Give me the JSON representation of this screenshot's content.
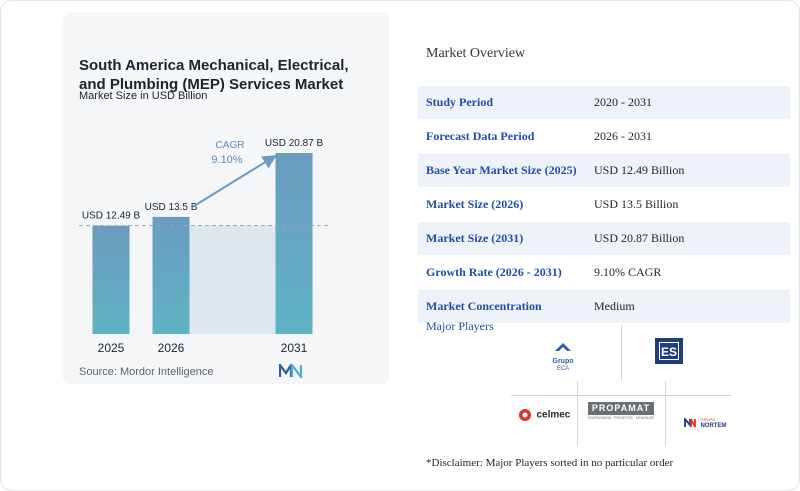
{
  "chart": {
    "title_line1": "South America Mechanical, Electrical,",
    "title_line2": "and Plumbing (MEP) Services Market",
    "subtitle": "Market Size in USD Billion",
    "source": "Source: Mordor Intelligence",
    "cagr_label": "CAGR",
    "cagr_value": "9.10%"
  },
  "chart_data": {
    "type": "bar",
    "categories": [
      "2025",
      "2026",
      "2031"
    ],
    "values": [
      12.49,
      13.5,
      20.87
    ],
    "data_labels": [
      "USD 12.49 B",
      "USD 13.5 B",
      "USD 20.87 B"
    ],
    "title": "South America Mechanical, Electrical, and Plumbing (MEP) Services Market",
    "subtitle": "Market Size in USD Billion",
    "xlabel": "",
    "ylabel": "",
    "ylim": [
      0,
      20.87
    ],
    "grid": false,
    "annotations": [
      "CAGR 9.10%"
    ],
    "colors": {
      "bar_top": "#6b9cc0",
      "bar_bottom": "#5fb3c4",
      "shade": "#dde8f1",
      "arrow": "#6b9cc0"
    }
  },
  "overview": {
    "title": "Market Overview",
    "rows": [
      {
        "key": "Study Period",
        "value": "2020 - 2031"
      },
      {
        "key": "Forecast Data Period",
        "value": "2026 - 2031"
      },
      {
        "key": "Base Year Market Size (2025)",
        "value": "USD 12.49 Billion"
      },
      {
        "key": "Market Size (2026)",
        "value": "USD 13.5 Billion"
      },
      {
        "key": "Market Size (2031)",
        "value": "USD 20.87 Billion"
      },
      {
        "key": "Growth Rate (2026 - 2031)",
        "value": "9.10% CAGR"
      },
      {
        "key": "Market Concentration",
        "value": "Medium"
      }
    ]
  },
  "players": {
    "title": "Major Players",
    "disclaimer": "*Disclaimer: Major Players sorted in no particular order",
    "logos": {
      "grupo_eca_line1": "Grupo",
      "grupo_eca_line2": "ECA",
      "es": "ES",
      "celmec": "celmec",
      "propamat": "PROPAMAT",
      "propamat_tag": "ENGENHARIA · PROJETOS · MONTAGEM",
      "nortem_small": "GRUPO",
      "nortem": "NORTEM"
    }
  }
}
